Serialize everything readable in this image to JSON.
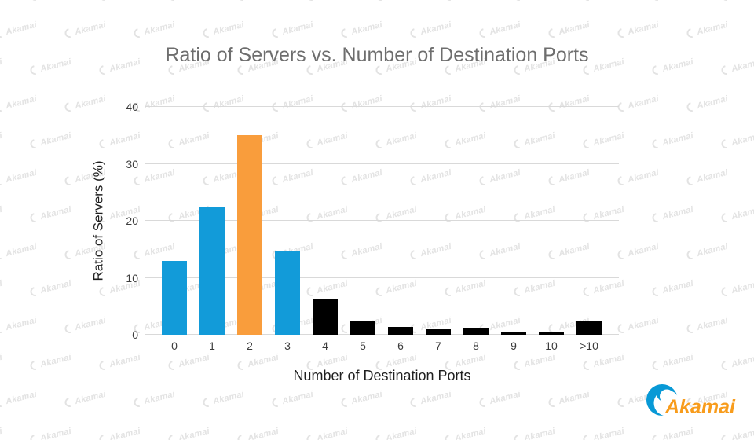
{
  "title": "Ratio of Servers vs. Number of Destination Ports",
  "watermark_text": "Akamai",
  "logo_text": "Akamai",
  "chart_data": {
    "type": "bar",
    "title": "Ratio of Servers vs. Number of Destination Ports",
    "categories": [
      "0",
      "1",
      "2",
      "3",
      "4",
      "5",
      "6",
      "7",
      "8",
      "9",
      "10",
      ">10"
    ],
    "values": [
      13,
      22.3,
      35,
      14.7,
      6.3,
      2.4,
      1.4,
      1.0,
      1.1,
      0.55,
      0.45,
      2.3
    ],
    "bar_colors": [
      "#129bd9",
      "#129bd9",
      "#f99d3c",
      "#129bd9",
      "#000000",
      "#000000",
      "#000000",
      "#000000",
      "#000000",
      "#000000",
      "#000000",
      "#000000"
    ],
    "xlabel": "Number of Destination Ports",
    "ylabel": "Ratio of Servers (%)",
    "ylim": [
      0,
      40
    ],
    "yticks": [
      0,
      10,
      20,
      30,
      40
    ],
    "grid": true,
    "legend": "none"
  },
  "colors": {
    "bar_blue": "#129bd9",
    "bar_orange": "#f99d3c",
    "bar_black": "#000000",
    "gridline": "#d9d9d9",
    "title_text": "#6e6e6e",
    "axis_text": "#3c3c3c",
    "logo_blue": "#0899d6",
    "logo_orange": "#f89c1c",
    "watermark": "#e3e3e3"
  }
}
